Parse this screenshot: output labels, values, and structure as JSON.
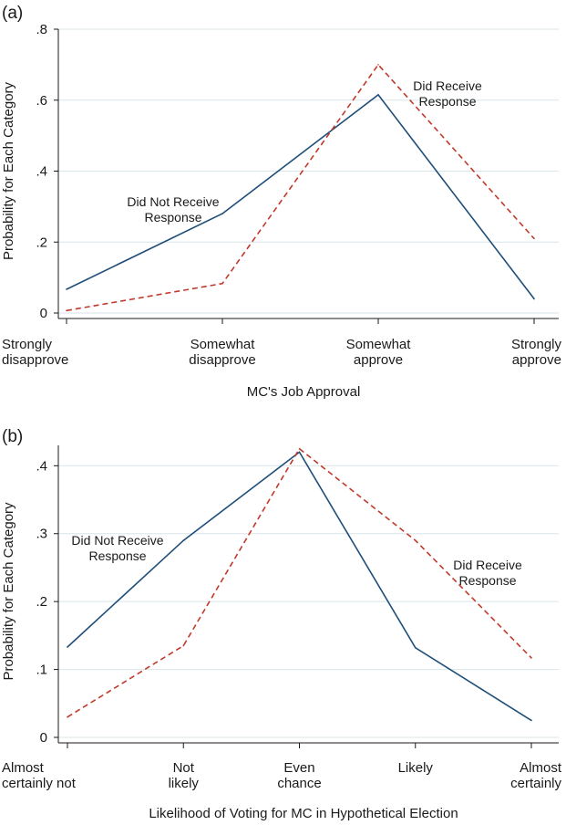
{
  "colors": {
    "not_received": "#1f4e79",
    "received": "#c0392b",
    "grid": "#d8e6ea",
    "text": "#1a1a1a"
  },
  "chart_data": [
    {
      "panel_label": "(a)",
      "type": "line",
      "xlabel": "MC's Job Approval",
      "ylabel": "Probability for Each Category",
      "ylim": [
        0,
        0.8
      ],
      "yticks": [
        0,
        0.2,
        0.4,
        0.6,
        0.8
      ],
      "ytick_labels": [
        "0",
        ".2",
        ".4",
        ".6",
        ".8"
      ],
      "grid": true,
      "categories": [
        [
          "Strongly",
          "disapprove"
        ],
        [
          "Somewhat",
          "disapprove"
        ],
        [
          "Somewhat",
          "approve"
        ],
        [
          "Strongly",
          "approve"
        ]
      ],
      "series": [
        {
          "name": "Did Not Receive Response",
          "label_lines": [
            "Did Not Receive",
            "Response"
          ],
          "style": "solid",
          "values": [
            0.067,
            0.28,
            0.615,
            0.04
          ]
        },
        {
          "name": "Did Receive Response",
          "label_lines": [
            "Did Receive",
            "Response"
          ],
          "style": "dashed",
          "values": [
            0.007,
            0.083,
            0.7,
            0.21
          ]
        }
      ]
    },
    {
      "panel_label": "(b)",
      "type": "line",
      "xlabel": "Likelihood of Voting for MC in Hypothetical Election",
      "ylabel": "Probability for Each Category",
      "ylim": [
        0,
        0.43
      ],
      "yticks": [
        0,
        0.1,
        0.2,
        0.3,
        0.4
      ],
      "ytick_labels": [
        "0",
        ".1",
        ".2",
        ".3",
        ".4"
      ],
      "grid": true,
      "categories": [
        [
          "Almost",
          "certainly not"
        ],
        [
          "Not",
          "likely"
        ],
        [
          "Even",
          "chance"
        ],
        [
          "Likely"
        ],
        [
          "Almost",
          "certainly"
        ]
      ],
      "series": [
        {
          "name": "Did Not Receive Response",
          "label_lines": [
            "Did Not Receive",
            "Response"
          ],
          "style": "solid",
          "values": [
            0.133,
            0.29,
            0.42,
            0.132,
            0.025
          ]
        },
        {
          "name": "Did Receive Response",
          "label_lines": [
            "Did Receive",
            "Response"
          ],
          "style": "dashed",
          "values": [
            0.03,
            0.135,
            0.425,
            0.29,
            0.117
          ]
        }
      ]
    }
  ]
}
